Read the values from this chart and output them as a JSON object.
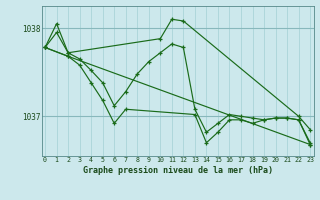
{
  "xlabel": "Graphe pression niveau de la mer (hPa)",
  "bg_color": "#cce8ec",
  "grid_color_v": "#aad4d8",
  "grid_color_h": "#88b8bc",
  "line_color": "#1a6b1a",
  "yticks": [
    1037,
    1038
  ],
  "ylim": [
    1036.55,
    1038.25
  ],
  "xlim": [
    -0.3,
    23.3
  ],
  "xticks": [
    0,
    1,
    2,
    3,
    4,
    5,
    6,
    7,
    8,
    9,
    10,
    11,
    12,
    13,
    14,
    15,
    16,
    17,
    18,
    19,
    20,
    21,
    22,
    23
  ],
  "series": [
    {
      "x": [
        0,
        1,
        2,
        3,
        4,
        5,
        6,
        7,
        8,
        9,
        10,
        11,
        12,
        13,
        14,
        15,
        16,
        17,
        18,
        19,
        20,
        21,
        22,
        23
      ],
      "y": [
        1037.78,
        1037.95,
        1037.72,
        1037.65,
        1037.52,
        1037.38,
        1037.12,
        1037.28,
        1037.48,
        1037.62,
        1037.72,
        1037.82,
        1037.78,
        1037.08,
        1036.82,
        1036.92,
        1037.02,
        1037.0,
        1036.98,
        1036.96,
        1036.98,
        1036.98,
        1036.96,
        1036.7
      ]
    },
    {
      "x": [
        0,
        1,
        2,
        10,
        11,
        12,
        22,
        23
      ],
      "y": [
        1037.78,
        1038.05,
        1037.72,
        1037.88,
        1038.1,
        1038.08,
        1037.0,
        1036.85
      ]
    },
    {
      "x": [
        0,
        2,
        3,
        4,
        5,
        6,
        7,
        13,
        14,
        15,
        16,
        17,
        18,
        19,
        20,
        21,
        22,
        23
      ],
      "y": [
        1037.78,
        1037.68,
        1037.58,
        1037.38,
        1037.18,
        1036.92,
        1037.08,
        1037.02,
        1036.7,
        1036.82,
        1036.96,
        1036.96,
        1036.92,
        1036.96,
        1036.98,
        1036.98,
        1036.96,
        1036.68
      ]
    },
    {
      "x": [
        0,
        2,
        23
      ],
      "y": [
        1037.78,
        1037.68,
        1036.68
      ]
    }
  ]
}
